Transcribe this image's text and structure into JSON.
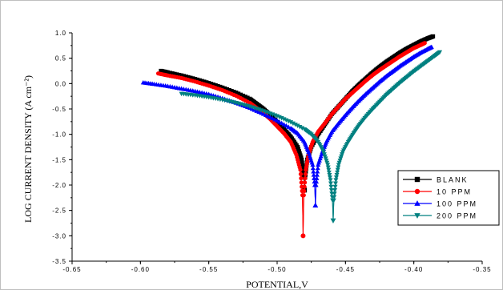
{
  "chart_data": {
    "type": "scatter",
    "xlabel": "POTENTIAL,V",
    "ylabel": "LOG CURRENT DENSITY (A cm⁻²)",
    "xlim": [
      -0.65,
      -0.35
    ],
    "ylim": [
      -3.5,
      1.0
    ],
    "x_ticks": [
      "-0.65",
      "-0.60",
      "-0.55",
      "-0.50",
      "-0.45",
      "-0.40",
      "-0.35"
    ],
    "y_ticks": [
      "-3.5",
      "-3.0",
      "-2.5",
      "-2.0",
      "-1.5",
      "-1.0",
      "-0.5",
      "0.0",
      "0.5",
      "1.0"
    ],
    "grid": false,
    "legend_position": "lower-right",
    "series": [
      {
        "name": "BLANK",
        "color": "#000000",
        "marker": "square",
        "corr_x": -0.48,
        "corr_y": -2.1,
        "anodic_x": [
          -0.4795,
          -0.478,
          -0.475,
          -0.47,
          -0.465,
          -0.46,
          -0.455,
          -0.45,
          -0.445,
          -0.44,
          -0.435,
          -0.43,
          -0.425,
          -0.42,
          -0.415,
          -0.41,
          -0.405,
          -0.4,
          -0.395,
          -0.39,
          -0.386
        ],
        "anodic_y": [
          -1.85,
          -1.5,
          -1.25,
          -1.0,
          -0.8,
          -0.6,
          -0.45,
          -0.3,
          -0.15,
          -0.02,
          0.1,
          0.22,
          0.33,
          0.43,
          0.52,
          0.61,
          0.69,
          0.76,
          0.83,
          0.89,
          0.93
        ],
        "cathodic_x": [
          -0.4805,
          -0.482,
          -0.485,
          -0.49,
          -0.495,
          -0.5,
          -0.505,
          -0.51,
          -0.515,
          -0.52,
          -0.53,
          -0.54,
          -0.55,
          -0.56,
          -0.57,
          -0.58,
          -0.585
        ],
        "cathodic_y": [
          -1.85,
          -1.5,
          -1.25,
          -1.05,
          -0.9,
          -0.76,
          -0.62,
          -0.5,
          -0.4,
          -0.3,
          -0.18,
          -0.08,
          0.01,
          0.09,
          0.16,
          0.22,
          0.25
        ]
      },
      {
        "name": "10 PPM",
        "color": "#ff0000",
        "marker": "circle",
        "corr_x": -0.481,
        "corr_y": -3.0,
        "anodic_x": [
          -0.4805,
          -0.479,
          -0.477,
          -0.474,
          -0.47,
          -0.465,
          -0.46,
          -0.455,
          -0.45,
          -0.445,
          -0.44,
          -0.435,
          -0.43,
          -0.425,
          -0.42,
          -0.415,
          -0.41,
          -0.405,
          -0.4,
          -0.395,
          -0.392
        ],
        "anodic_y": [
          -2.2,
          -1.7,
          -1.4,
          -1.15,
          -0.95,
          -0.78,
          -0.6,
          -0.45,
          -0.3,
          -0.18,
          -0.06,
          0.06,
          0.17,
          0.27,
          0.36,
          0.45,
          0.54,
          0.62,
          0.7,
          0.76,
          0.8
        ],
        "cathodic_x": [
          -0.4815,
          -0.483,
          -0.486,
          -0.49,
          -0.495,
          -0.5,
          -0.505,
          -0.51,
          -0.515,
          -0.52,
          -0.53,
          -0.54,
          -0.55,
          -0.56,
          -0.57,
          -0.58,
          -0.587
        ],
        "cathodic_y": [
          -2.2,
          -1.7,
          -1.4,
          -1.15,
          -0.98,
          -0.84,
          -0.7,
          -0.58,
          -0.48,
          -0.38,
          -0.24,
          -0.13,
          -0.04,
          0.04,
          0.11,
          0.16,
          0.2
        ]
      },
      {
        "name": "100 PPM",
        "color": "#0000ff",
        "marker": "triangle-up",
        "corr_x": -0.472,
        "corr_y": -2.4,
        "anodic_x": [
          -0.4715,
          -0.47,
          -0.467,
          -0.464,
          -0.46,
          -0.455,
          -0.45,
          -0.445,
          -0.44,
          -0.435,
          -0.43,
          -0.425,
          -0.42,
          -0.415,
          -0.41,
          -0.405,
          -0.4,
          -0.395,
          -0.39,
          -0.387
        ],
        "anodic_y": [
          -2.0,
          -1.6,
          -1.35,
          -1.15,
          -0.95,
          -0.78,
          -0.62,
          -0.47,
          -0.33,
          -0.2,
          -0.08,
          0.04,
          0.15,
          0.25,
          0.35,
          0.44,
          0.53,
          0.61,
          0.68,
          0.72
        ],
        "cathodic_x": [
          -0.4725,
          -0.474,
          -0.477,
          -0.48,
          -0.485,
          -0.49,
          -0.5,
          -0.51,
          -0.52,
          -0.53,
          -0.54,
          -0.55,
          -0.56,
          -0.57,
          -0.58,
          -0.59,
          -0.598
        ],
        "cathodic_y": [
          -2.0,
          -1.6,
          -1.35,
          -1.15,
          -0.98,
          -0.88,
          -0.73,
          -0.6,
          -0.48,
          -0.38,
          -0.29,
          -0.21,
          -0.15,
          -0.1,
          -0.05,
          -0.01,
          0.02
        ]
      },
      {
        "name": "200 PPM",
        "color": "#008080",
        "marker": "triangle-down",
        "corr_x": -0.459,
        "corr_y": -2.7,
        "anodic_x": [
          -0.4585,
          -0.457,
          -0.455,
          -0.452,
          -0.448,
          -0.444,
          -0.44,
          -0.435,
          -0.43,
          -0.425,
          -0.42,
          -0.415,
          -0.41,
          -0.405,
          -0.4,
          -0.395,
          -0.39,
          -0.385,
          -0.381
        ],
        "anodic_y": [
          -2.3,
          -1.9,
          -1.6,
          -1.35,
          -1.15,
          -0.98,
          -0.82,
          -0.65,
          -0.5,
          -0.36,
          -0.22,
          -0.1,
          0.02,
          0.13,
          0.24,
          0.34,
          0.44,
          0.54,
          0.62
        ],
        "cathodic_x": [
          -0.4595,
          -0.461,
          -0.463,
          -0.466,
          -0.47,
          -0.475,
          -0.48,
          -0.49,
          -0.5,
          -0.51,
          -0.52,
          -0.53,
          -0.54,
          -0.55,
          -0.56,
          -0.57
        ],
        "cathodic_y": [
          -2.3,
          -1.9,
          -1.6,
          -1.35,
          -1.15,
          -1.0,
          -0.9,
          -0.76,
          -0.64,
          -0.54,
          -0.45,
          -0.38,
          -0.32,
          -0.27,
          -0.23,
          -0.2
        ]
      }
    ]
  }
}
